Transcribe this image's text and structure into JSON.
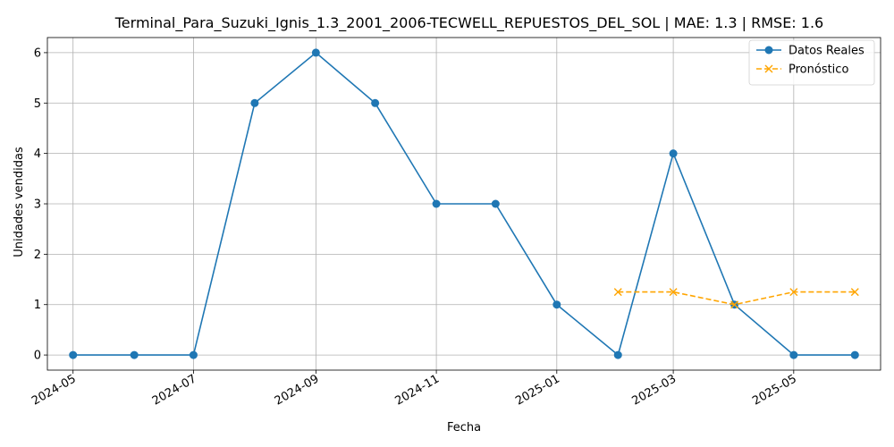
{
  "chart_data": {
    "type": "line",
    "title": "Terminal_Para_Suzuki_Ignis_1.3_2001_2006-TECWELL_REPUESTOS_DEL_SOL | MAE: 1.3 | RMSE: 1.6",
    "xlabel": "Fecha",
    "ylabel": "Unidades vendidas",
    "ylim": [
      -0.3,
      6.3
    ],
    "xlim": [
      "2024-04-18",
      "2025-06-14"
    ],
    "grid": true,
    "legend_position": "top-right",
    "x_ticks": [
      "2024-05",
      "2024-07",
      "2024-09",
      "2024-11",
      "2025-01",
      "2025-03",
      "2025-05"
    ],
    "y_ticks": [
      0,
      1,
      2,
      3,
      4,
      5,
      6
    ],
    "series": [
      {
        "name": "Datos Reales",
        "color": "#1f77b4",
        "style": "solid",
        "marker": "circle",
        "x": [
          "2024-05-01",
          "2024-06-01",
          "2024-07-01",
          "2024-08-01",
          "2024-09-01",
          "2024-10-01",
          "2024-11-01",
          "2024-12-01",
          "2025-01-01",
          "2025-02-01",
          "2025-03-01",
          "2025-04-01",
          "2025-05-01",
          "2025-06-01"
        ],
        "values": [
          0,
          0,
          0,
          5,
          6,
          5,
          3,
          3,
          1,
          0,
          4,
          1,
          0,
          0
        ]
      },
      {
        "name": "Pronóstico",
        "color": "#ffa500",
        "style": "dashed",
        "marker": "x",
        "x": [
          "2025-02-01",
          "2025-03-01",
          "2025-04-01",
          "2025-05-01",
          "2025-06-01"
        ],
        "values": [
          1.25,
          1.25,
          1.0,
          1.25,
          1.25
        ]
      }
    ]
  }
}
